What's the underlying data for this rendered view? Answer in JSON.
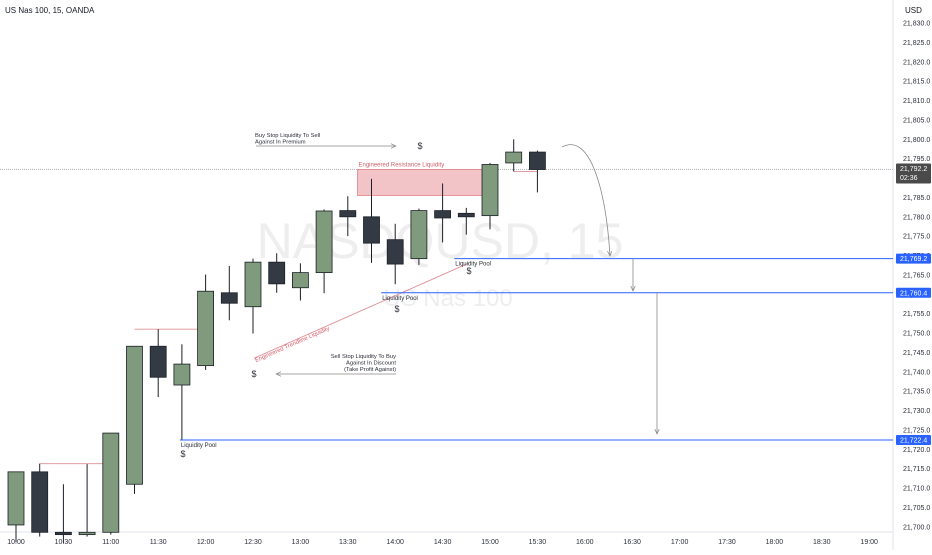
{
  "header": {
    "symbol_title": "US Nas 100, 15, OANDA",
    "currency": "USD"
  },
  "watermark": {
    "ticker": "NASDQUSD, 15",
    "name": "US Nas 100"
  },
  "colors": {
    "bull_fill": "#7f9a7c",
    "bear_fill": "#343a44",
    "candle_outline": "#1b1f26",
    "liquidity_line": "#2962ff",
    "resistance_zone": "#f2c4c8",
    "resistance_border": "#e57f86",
    "trendline": "#e08f96",
    "price_tag_bg": "#4a4a4a",
    "axis_text": "#2a2e39"
  },
  "current_price": {
    "price": 21792.2,
    "label": "21,792.2",
    "countdown": "02:36"
  },
  "chart_data": {
    "type": "candlestick",
    "ylim": [
      21695,
      21835
    ],
    "x_ticks": [
      "10:00",
      "10:30",
      "11:00",
      "11:30",
      "12:00",
      "12:30",
      "13:00",
      "13:30",
      "14:00",
      "14:30",
      "15:00",
      "15:30",
      "16:00",
      "16:30",
      "17:00",
      "17:30",
      "18:00",
      "18:30",
      "19:00"
    ],
    "y_ticks": [
      "21,830.0",
      "21,825.0",
      "21,820.0",
      "21,815.0",
      "21,810.0",
      "21,805.0",
      "21,800.0",
      "21,795.0",
      "21,790.0",
      "21,785.0",
      "21,780.0",
      "21,775.0",
      "21,770.0",
      "21,765.0",
      "21,760.0",
      "21,755.0",
      "21,750.0",
      "21,745.0",
      "21,740.0",
      "21,735.0",
      "21,730.0",
      "21,725.0",
      "21,720.0",
      "21,715.0",
      "21,710.0",
      "21,705.0",
      "21,700.0"
    ],
    "candles": [
      {
        "time": "10:00",
        "open": 21700.5,
        "high": 21714.2,
        "low": 21696.0,
        "close": 21714.2
      },
      {
        "time": "10:15",
        "open": 21714.2,
        "high": 21716.3,
        "low": 21697.5,
        "close": 21698.6
      },
      {
        "time": "10:30",
        "open": 21698.6,
        "high": 21711.0,
        "low": 21695.8,
        "close": 21698.0
      },
      {
        "time": "10:45",
        "open": 21698.0,
        "high": 21716.2,
        "low": 21697.5,
        "close": 21698.6
      },
      {
        "time": "11:00",
        "open": 21698.6,
        "high": 21724.2,
        "low": 21698.0,
        "close": 21724.2
      },
      {
        "time": "11:15",
        "open": 21711.0,
        "high": 21746.6,
        "low": 21708.5,
        "close": 21746.6
      },
      {
        "time": "11:30",
        "open": 21746.6,
        "high": 21751.0,
        "low": 21733.5,
        "close": 21738.6
      },
      {
        "time": "11:45",
        "open": 21736.6,
        "high": 21747.1,
        "low": 21722.4,
        "close": 21742.0
      },
      {
        "time": "12:00",
        "open": 21741.6,
        "high": 21765.1,
        "low": 21740.5,
        "close": 21760.8
      },
      {
        "time": "12:15",
        "open": 21760.4,
        "high": 21767.3,
        "low": 21753.3,
        "close": 21757.7
      },
      {
        "time": "12:30",
        "open": 21756.8,
        "high": 21769.2,
        "low": 21749.9,
        "close": 21768.3
      },
      {
        "time": "12:45",
        "open": 21768.3,
        "high": 21770.6,
        "low": 21760.4,
        "close": 21762.7
      },
      {
        "time": "13:00",
        "open": 21761.7,
        "high": 21768.0,
        "low": 21758.4,
        "close": 21765.6
      },
      {
        "time": "13:15",
        "open": 21765.6,
        "high": 21781.9,
        "low": 21760.3,
        "close": 21781.5
      },
      {
        "time": "13:30",
        "open": 21781.6,
        "high": 21785.3,
        "low": 21775.0,
        "close": 21780.0
      },
      {
        "time": "13:45",
        "open": 21780.0,
        "high": 21789.8,
        "low": 21768.1,
        "close": 21773.2
      },
      {
        "time": "14:00",
        "open": 21774.1,
        "high": 21778.2,
        "low": 21762.6,
        "close": 21767.8
      },
      {
        "time": "14:15",
        "open": 21769.2,
        "high": 21782.1,
        "low": 21767.6,
        "close": 21781.6
      },
      {
        "time": "14:30",
        "open": 21781.6,
        "high": 21788.6,
        "low": 21773.4,
        "close": 21779.7
      },
      {
        "time": "14:45",
        "open": 21780.9,
        "high": 21782.3,
        "low": 21775.4,
        "close": 21780.0
      },
      {
        "time": "15:00",
        "open": 21780.3,
        "high": 21793.9,
        "low": 21776.8,
        "close": 21793.5
      },
      {
        "time": "15:15",
        "open": 21793.9,
        "high": 21800.0,
        "low": 21791.7,
        "close": 21796.7
      },
      {
        "time": "15:30",
        "open": 21796.7,
        "high": 21797.1,
        "low": 21786.3,
        "close": 21792.2
      }
    ],
    "liquidity_levels": [
      {
        "price": 21769.2,
        "price_label": "21,769.2",
        "label": "Liquidity Pool"
      },
      {
        "price": 21760.4,
        "price_label": "21,760.4",
        "label": "Liquidity Pool"
      },
      {
        "price": 21722.4,
        "price_label": "21,722.4",
        "label": "Liquidity Pool"
      }
    ],
    "resistance_zone": {
      "top": 21792.2,
      "bottom": 21785.5,
      "label": "Engineered Resistance Liquidity"
    },
    "trendline": {
      "from": {
        "time": "12:30",
        "price": 21743.5
      },
      "to": {
        "time": "14:45",
        "price": 21768.0
      },
      "label": "Engineered Trendline Liquidity"
    },
    "annotations": [
      {
        "lines": [
          "Buy Stop Liquidity To Sell",
          "Against In Premium"
        ]
      },
      {
        "lines": [
          "Sell Stop Liquidity To Buy",
          "Against In Discount",
          "(Take Profit Against)"
        ]
      }
    ],
    "dollar_marks": [
      "$",
      "$",
      "$",
      "$",
      "$"
    ]
  }
}
